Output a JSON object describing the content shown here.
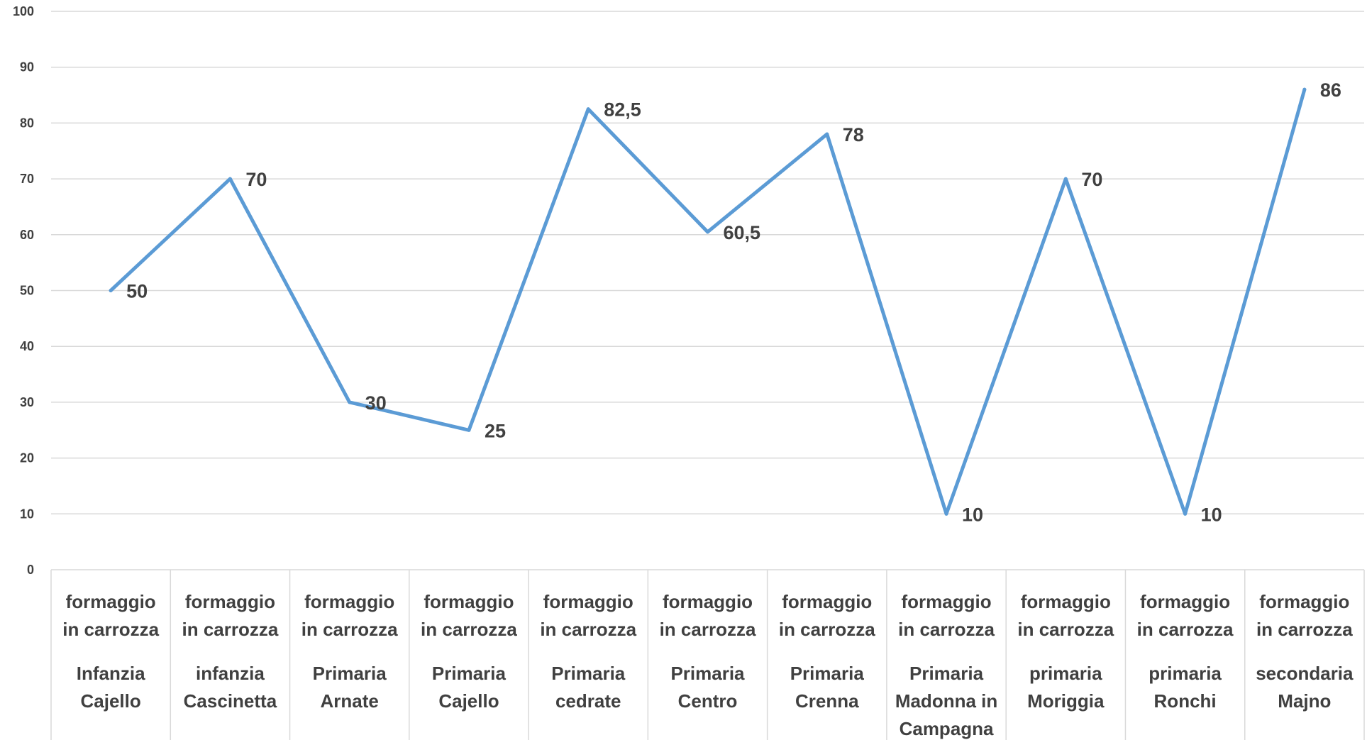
{
  "chart_data": {
    "type": "line",
    "title": "",
    "xlabel": "",
    "ylabel": "",
    "ylim": [
      0,
      100
    ],
    "y_ticks": [
      0,
      10,
      20,
      30,
      40,
      50,
      60,
      70,
      80,
      90,
      100
    ],
    "grid": true,
    "legend": "none",
    "line_color": "#5b9bd5",
    "categories": [
      {
        "top": "formaggio in carrozza",
        "bottom": "Infanzia Cajello"
      },
      {
        "top": "formaggio in carrozza",
        "bottom": "infanzia Cascinetta"
      },
      {
        "top": "formaggio in carrozza",
        "bottom": "Primaria Arnate"
      },
      {
        "top": "formaggio in carrozza",
        "bottom": "Primaria Cajello"
      },
      {
        "top": "formaggio in carrozza",
        "bottom": "Primaria cedrate"
      },
      {
        "top": "formaggio in carrozza",
        "bottom": "Primaria Centro"
      },
      {
        "top": "formaggio in carrozza",
        "bottom": "Primaria Crenna"
      },
      {
        "top": "formaggio in carrozza",
        "bottom": "Primaria Madonna in Campagna"
      },
      {
        "top": "formaggio in carrozza",
        "bottom": "primaria Moriggia"
      },
      {
        "top": "formaggio in carrozza",
        "bottom": "primaria Ronchi"
      },
      {
        "top": "formaggio in carrozza",
        "bottom": "secondaria Majno"
      }
    ],
    "series": [
      {
        "values": [
          50,
          70,
          30,
          25,
          82.5,
          60.5,
          78,
          10,
          70,
          10,
          86
        ],
        "data_labels": [
          "50",
          "70",
          "30",
          "25",
          "82,5",
          "60,5",
          "78",
          "10",
          "70",
          "10",
          "86"
        ]
      }
    ]
  }
}
